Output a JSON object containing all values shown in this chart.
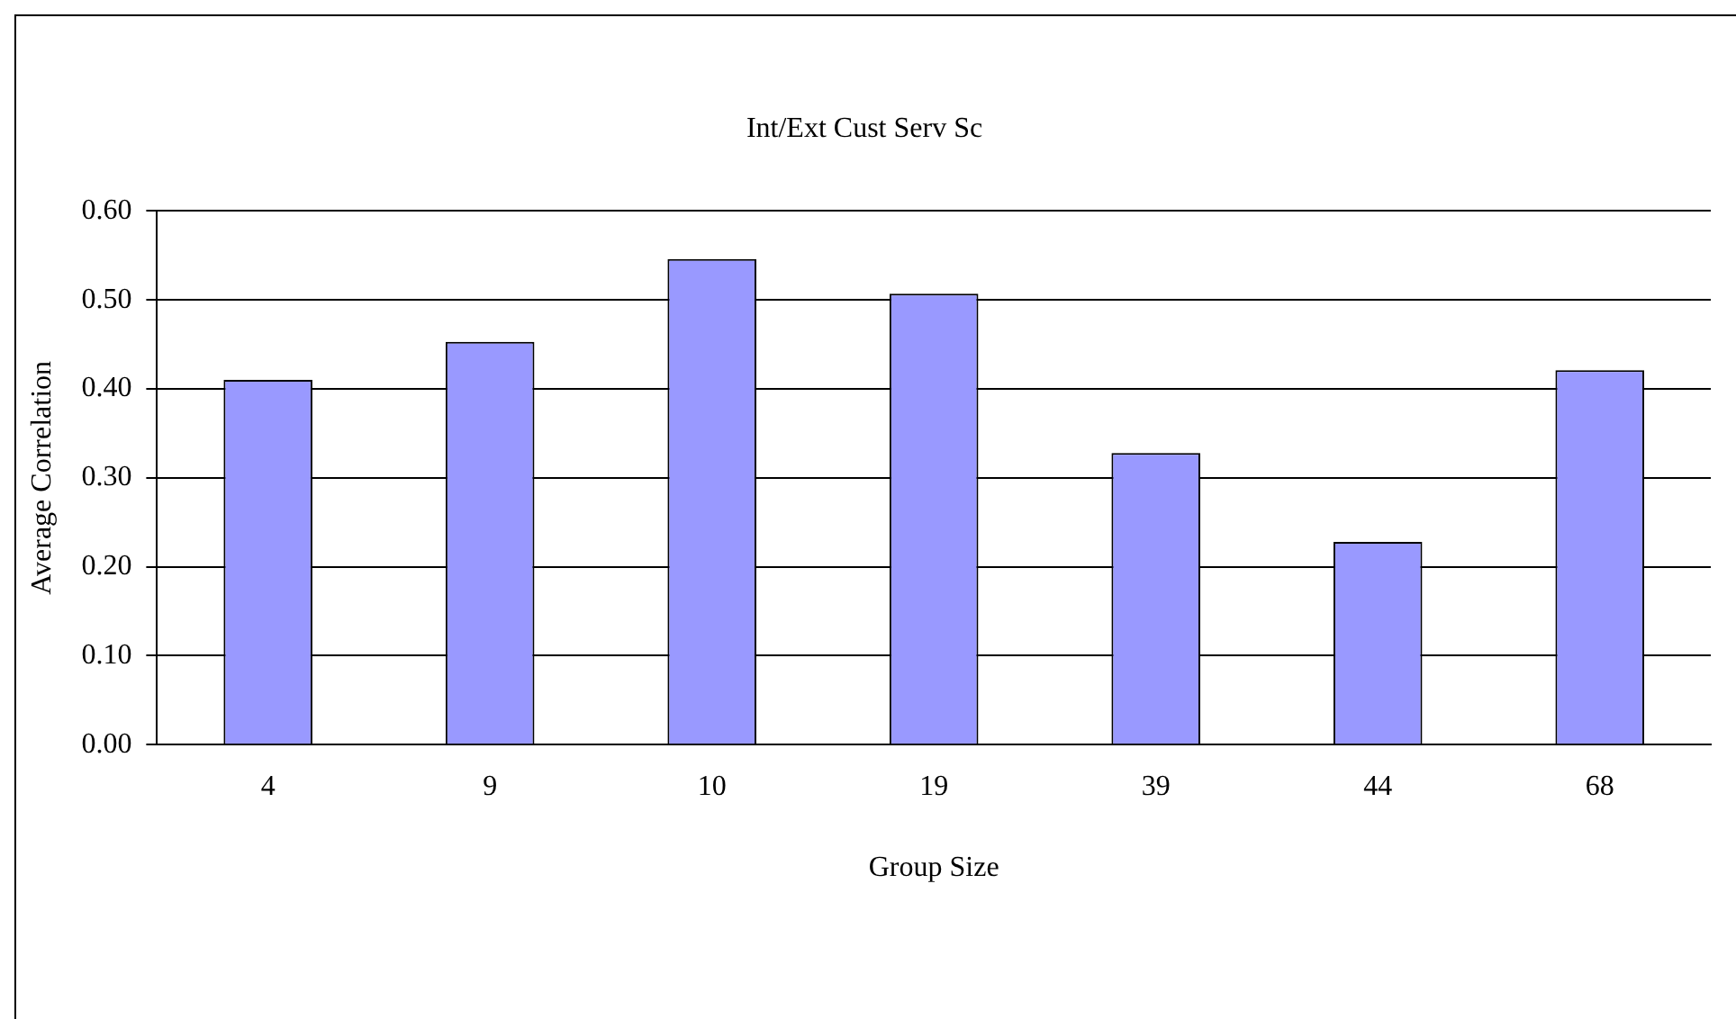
{
  "chart_data": {
    "type": "bar",
    "title": "Int/Ext Cust Serv Sc",
    "xlabel": "Group Size",
    "ylabel": "Average Correlation",
    "categories": [
      "4",
      "9",
      "10",
      "19",
      "39",
      "44",
      "68"
    ],
    "values": [
      0.41,
      0.453,
      0.546,
      0.507,
      0.328,
      0.228,
      0.421
    ],
    "color": "#9999ff",
    "ylim": [
      0,
      0.6
    ],
    "yticks": [
      {
        "value": 0,
        "label": "0.00"
      },
      {
        "value": 0.1,
        "label": "0.10"
      },
      {
        "value": 0.2,
        "label": "0.20"
      },
      {
        "value": 0.3,
        "label": "0.30"
      },
      {
        "value": 0.4,
        "label": "0.40"
      },
      {
        "value": 0.5,
        "label": "0.50"
      },
      {
        "value": 0.6,
        "label": "0.60"
      }
    ],
    "grid": "y",
    "legend": false
  }
}
